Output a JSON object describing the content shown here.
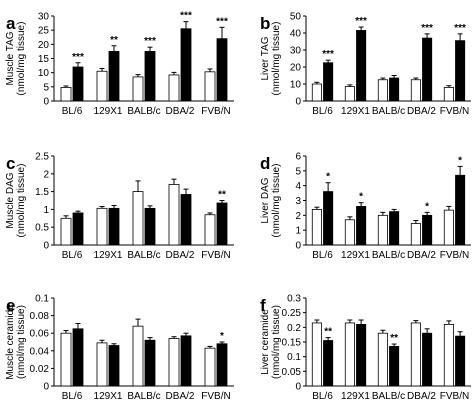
{
  "figure": {
    "panel_letters": [
      "a",
      "b",
      "c",
      "d",
      "e",
      "f"
    ]
  },
  "colors": {
    "open_bar": "#ffffff",
    "closed_bar": "#000000",
    "stroke": "#000000"
  },
  "chart_data": [
    {
      "type": "bar",
      "panel": "a",
      "ylabel": [
        "Muscle TAG",
        "(nmol/mg tissue)"
      ],
      "ylim": [
        0,
        30
      ],
      "yticks": [
        0,
        5,
        10,
        15,
        20,
        25,
        30
      ],
      "categories": [
        "BL/6",
        "129X1",
        "BALB/c",
        "DBA/2",
        "FVB/N"
      ],
      "series": [
        {
          "fill": "white",
          "values": [
            4.8,
            10.5,
            8.5,
            9.2,
            10.3
          ],
          "errors": [
            0.5,
            1.0,
            0.8,
            0.9,
            1.0
          ]
        },
        {
          "fill": "black",
          "values": [
            12.0,
            17.5,
            17.5,
            25.5,
            22.0
          ],
          "errors": [
            1.5,
            2.0,
            1.5,
            2.5,
            4.0
          ]
        }
      ],
      "significance": [
        "***",
        "**",
        "***",
        "***",
        "***"
      ]
    },
    {
      "type": "bar",
      "panel": "b",
      "ylabel": [
        "Liver TAG",
        "(nmol/mg tissue)"
      ],
      "ylim": [
        0,
        50
      ],
      "yticks": [
        0,
        10,
        20,
        30,
        40,
        50
      ],
      "categories": [
        "BL/6",
        "129X1",
        "BALB/c",
        "DBA/2",
        "FVB/N"
      ],
      "series": [
        {
          "fill": "white",
          "values": [
            10.0,
            8.5,
            12.5,
            12.5,
            8.0
          ],
          "errors": [
            1.0,
            1.0,
            1.0,
            1.0,
            1.0
          ]
        },
        {
          "fill": "black",
          "values": [
            22.5,
            41.5,
            13.5,
            37.0,
            35.5
          ],
          "errors": [
            1.5,
            2.0,
            1.5,
            2.5,
            4.0
          ]
        }
      ],
      "significance": [
        "***",
        "***",
        "",
        "***",
        "***"
      ]
    },
    {
      "type": "bar",
      "panel": "c",
      "ylabel": [
        "Muscle DAG",
        "(nmol/mg tissue)"
      ],
      "ylim": [
        0,
        2.5
      ],
      "yticks": [
        0,
        0.5,
        1,
        1.5,
        2,
        2.5
      ],
      "categories": [
        "BL/6",
        "129X1",
        "BALB/c",
        "DBA/2",
        "FVB/N"
      ],
      "series": [
        {
          "fill": "white",
          "values": [
            0.75,
            1.03,
            1.5,
            1.7,
            0.85
          ],
          "errors": [
            0.07,
            0.05,
            0.3,
            0.15,
            0.05
          ]
        },
        {
          "fill": "black",
          "values": [
            0.9,
            1.03,
            1.03,
            1.42,
            1.18
          ],
          "errors": [
            0.05,
            0.08,
            0.07,
            0.15,
            0.07
          ]
        }
      ],
      "significance": [
        "",
        "",
        "",
        "",
        "**"
      ]
    },
    {
      "type": "bar",
      "panel": "d",
      "ylabel": [
        "Liver DAG",
        "(nmol/mg tissue)"
      ],
      "ylim": [
        0,
        6
      ],
      "yticks": [
        0,
        1,
        2,
        3,
        4,
        5,
        6
      ],
      "categories": [
        "BL/6",
        "129X1",
        "BALB/c",
        "DBA/2",
        "FVB/N"
      ],
      "series": [
        {
          "fill": "white",
          "values": [
            2.4,
            1.7,
            2.0,
            1.45,
            2.35
          ],
          "errors": [
            0.15,
            0.2,
            0.2,
            0.2,
            0.25
          ]
        },
        {
          "fill": "black",
          "values": [
            3.6,
            2.6,
            2.25,
            2.0,
            4.7
          ],
          "errors": [
            0.6,
            0.25,
            0.15,
            0.2,
            0.6
          ]
        }
      ],
      "significance": [
        "*",
        "*",
        "",
        "*",
        "*"
      ]
    },
    {
      "type": "bar",
      "panel": "e",
      "ylabel": [
        "Muscle ceramide",
        "(nmol/mg tissue)"
      ],
      "ylim": [
        0,
        0.1
      ],
      "yticks": [
        0,
        0.02,
        0.04,
        0.06,
        0.08,
        0.1
      ],
      "categories": [
        "BL/6",
        "129X1",
        "BALB/c",
        "DBA/2",
        "FVB/N"
      ],
      "series": [
        {
          "fill": "white",
          "values": [
            0.06,
            0.049,
            0.068,
            0.054,
            0.043
          ],
          "errors": [
            0.003,
            0.003,
            0.008,
            0.002,
            0.002
          ]
        },
        {
          "fill": "black",
          "values": [
            0.065,
            0.046,
            0.052,
            0.057,
            0.048
          ],
          "errors": [
            0.006,
            0.002,
            0.003,
            0.003,
            0.002
          ]
        }
      ],
      "significance": [
        "",
        "",
        "",
        "",
        "*"
      ]
    },
    {
      "type": "bar",
      "panel": "f",
      "ylabel": [
        "Liver ceramide",
        "(nmol/mg tissue)"
      ],
      "ylim": [
        0,
        0.3
      ],
      "yticks": [
        0,
        0.05,
        0.1,
        0.15,
        0.2,
        0.25,
        0.3
      ],
      "categories": [
        "BL/6",
        "129X1",
        "BALB/c",
        "DBA/2",
        "FVB/N"
      ],
      "series": [
        {
          "fill": "white",
          "values": [
            0.215,
            0.215,
            0.18,
            0.215,
            0.21
          ],
          "errors": [
            0.01,
            0.01,
            0.01,
            0.008,
            0.012
          ]
        },
        {
          "fill": "black",
          "values": [
            0.155,
            0.21,
            0.135,
            0.18,
            0.17
          ],
          "errors": [
            0.01,
            0.015,
            0.008,
            0.015,
            0.015
          ]
        }
      ],
      "significance": [
        "**",
        "",
        "**",
        "",
        ""
      ]
    }
  ]
}
